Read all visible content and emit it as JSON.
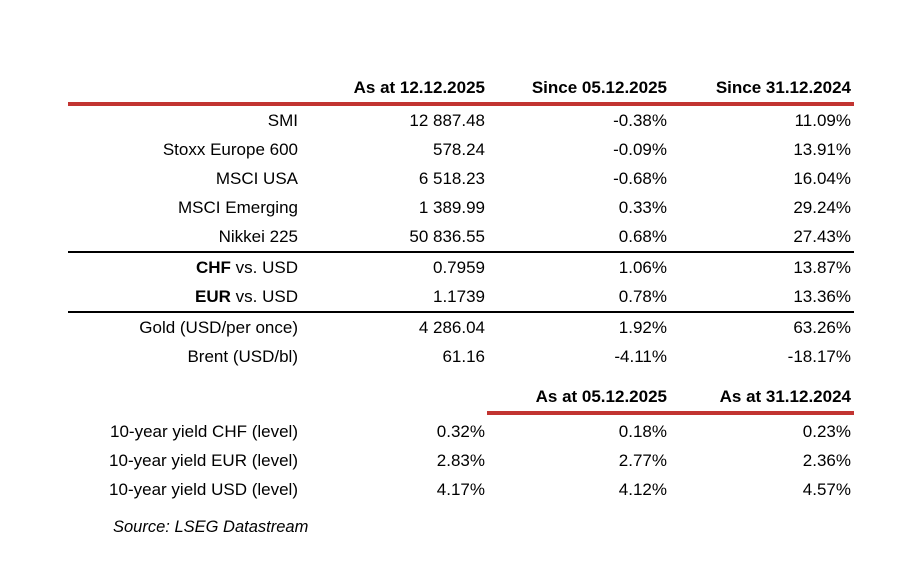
{
  "colors": {
    "accent_red": "#c23431",
    "separator_black": "#000000",
    "text": "#000000",
    "background": "#ffffff"
  },
  "chart_data": {
    "type": "table",
    "header_row_1": {
      "col2": "As at 12.12.2025",
      "col3": "Since 05.12.2025",
      "col4": "Since 31.12.2024"
    },
    "rows_1": [
      {
        "strong": "",
        "label": "SMI",
        "values": [
          "12 887.48",
          "-0.38%",
          "11.09%"
        ]
      },
      {
        "strong": "",
        "label": "Stoxx Europe 600",
        "values": [
          "578.24",
          "-0.09%",
          "13.91%"
        ]
      },
      {
        "strong": "",
        "label": "MSCI USA",
        "values": [
          "6 518.23",
          "-0.68%",
          "16.04%"
        ]
      },
      {
        "strong": "",
        "label": "MSCI Emerging",
        "values": [
          "1 389.99",
          "0.33%",
          "29.24%"
        ]
      },
      {
        "strong": "",
        "label": "Nikkei 225",
        "values": [
          "50 836.55",
          "0.68%",
          "27.43%"
        ]
      },
      {
        "strong": "CHF",
        "label": " vs. USD",
        "values": [
          "0.7959",
          "1.06%",
          "13.87%"
        ]
      },
      {
        "strong": "EUR",
        "label": " vs. USD",
        "values": [
          "1.1739",
          "0.78%",
          "13.36%"
        ]
      },
      {
        "strong": "",
        "label": "Gold (USD/per once)",
        "values": [
          "4 286.04",
          "1.92%",
          "63.26%"
        ]
      },
      {
        "strong": "",
        "label": "Brent (USD/bl)",
        "values": [
          "61.16",
          "-4.11%",
          "-18.17%"
        ]
      }
    ],
    "header_row_2": {
      "col3": "As at 05.12.2025",
      "col4": "As at 31.12.2024"
    },
    "rows_2": [
      {
        "label": "10-year yield CHF (level)",
        "values": [
          "0.32%",
          "0.18%",
          "0.23%"
        ]
      },
      {
        "label": "10-year yield EUR (level)",
        "values": [
          "2.83%",
          "2.77%",
          "2.36%"
        ]
      },
      {
        "label": "10-year yield USD (level)",
        "values": [
          "4.17%",
          "4.12%",
          "4.57%"
        ]
      }
    ],
    "source": "Source: LSEG Datastream"
  }
}
